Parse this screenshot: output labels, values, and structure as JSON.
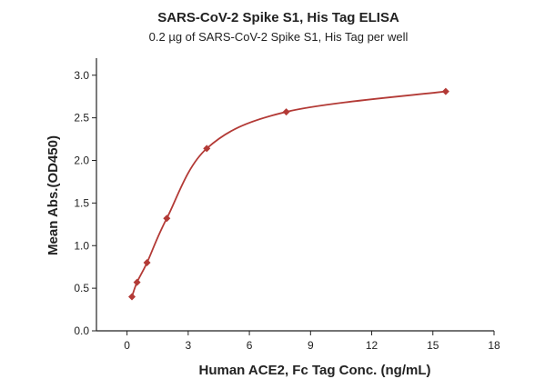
{
  "chart_data": {
    "type": "scatter",
    "title": "SARS-CoV-2 Spike S1, His Tag ELISA",
    "subtitle": "0.2 µg of SARS-CoV-2 Spike S1, His Tag per well",
    "xlabel": "Human ACE2, Fc Tag Conc. (ng/mL)",
    "ylabel": "Mean Abs.(OD450)",
    "xlim": [
      -1.5,
      18
    ],
    "ylim": [
      0,
      3.2
    ],
    "xticks": [
      0,
      3,
      6,
      9,
      12,
      15,
      18
    ],
    "yticks": [
      0.0,
      0.5,
      1.0,
      1.5,
      2.0,
      2.5,
      3.0
    ],
    "xtick_labels": [
      "0",
      "3",
      "6",
      "9",
      "12",
      "15",
      "18"
    ],
    "ytick_labels": [
      "0.0",
      "0.5",
      "1.0",
      "1.5",
      "2.0",
      "2.5",
      "3.0"
    ],
    "grid": false,
    "series": [
      {
        "color": "#b33a36",
        "marker": "diamond",
        "x": [
          0.24,
          0.49,
          0.98,
          1.95,
          3.91,
          7.81,
          15.63
        ],
        "y": [
          0.4,
          0.57,
          0.8,
          1.32,
          2.14,
          2.57,
          2.81
        ],
        "fit_curve": true
      }
    ]
  }
}
